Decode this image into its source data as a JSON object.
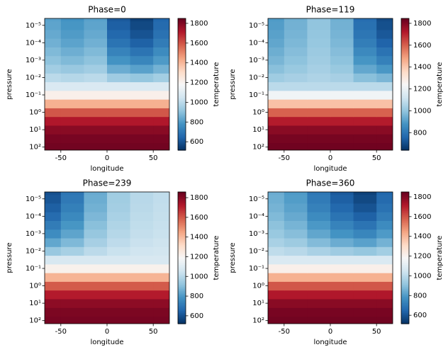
{
  "chart_data": [
    {
      "type": "heatmap",
      "title": "Phase=0",
      "x_label": "longitude",
      "y_label": "pressure",
      "colorbar_label": "temperature",
      "x": [
        -62.5,
        -37.5,
        -12.5,
        12.5,
        37.5,
        62.5
      ],
      "y": [
        100,
        31.6,
        10,
        3.16,
        1,
        0.316,
        0.1,
        0.0316,
        0.01,
        0.00316,
        0.001,
        0.000316,
        0.0001,
        3.16e-05,
        1e-05,
        3.16e-06
      ],
      "z": [
        [
          1830,
          1830,
          1830,
          1830,
          1830,
          1830
        ],
        [
          1820,
          1820,
          1820,
          1820,
          1820,
          1820
        ],
        [
          1790,
          1790,
          1790,
          1790,
          1790,
          1790
        ],
        [
          1720,
          1720,
          1720,
          1720,
          1720,
          1720
        ],
        [
          1600,
          1600,
          1600,
          1600,
          1600,
          1600
        ],
        [
          1420,
          1420,
          1420,
          1420,
          1420,
          1420
        ],
        [
          1220,
          1220,
          1220,
          1220,
          1220,
          1220
        ],
        [
          1080,
          1080,
          1080,
          1080,
          1080,
          1080
        ],
        [
          1002,
          990,
          1002,
          942,
          924,
          951
        ],
        [
          950,
          930,
          950,
          850,
          820,
          865
        ],
        [
          911,
          885,
          911,
          781,
          742,
          800
        ],
        [
          885,
          855,
          885,
          735,
          690,
          758
        ],
        [
          859,
          825,
          859,
          689,
          638,
          715
        ],
        [
          841,
          804,
          841,
          657,
          602,
          684
        ],
        [
          828,
          789,
          828,
          634,
          576,
          663
        ],
        [
          820,
          780,
          820,
          620,
          560,
          650
        ]
      ],
      "xlim": [
        -67.5,
        67.5
      ],
      "ylim": [
        150,
        4e-06
      ],
      "yscale": "log",
      "xticks": [
        -50,
        0,
        50
      ],
      "yticks": [
        {
          "value": 1e-05,
          "label": "10⁻⁵"
        },
        {
          "value": 0.0001,
          "label": "10⁻⁴"
        },
        {
          "value": 0.001,
          "label": "10⁻³"
        },
        {
          "value": 0.01,
          "label": "10⁻²"
        },
        {
          "value": 0.1,
          "label": "10⁻¹"
        },
        {
          "value": 1,
          "label": "10⁰"
        },
        {
          "value": 10,
          "label": "10¹"
        },
        {
          "value": 100,
          "label": "10²"
        }
      ],
      "clim": [
        515,
        1850
      ],
      "cticks": [
        600,
        800,
        1000,
        1200,
        1400,
        1600,
        1800
      ],
      "colormap": [
        "#053061",
        "#2166ac",
        "#4393c3",
        "#92c5de",
        "#d1e5f0",
        "#f7f7f7",
        "#fddbc7",
        "#f4a582",
        "#d6604d",
        "#b2182b",
        "#67001f"
      ]
    },
    {
      "type": "heatmap",
      "title": "Phase=119",
      "x_label": "longitude",
      "y_label": "pressure",
      "colorbar_label": "temperature",
      "x": [
        -62.5,
        -37.5,
        -12.5,
        12.5,
        37.5,
        62.5
      ],
      "y": [
        100,
        31.6,
        10,
        3.16,
        1,
        0.316,
        0.1,
        0.0316,
        0.01,
        0.00316,
        0.001,
        0.000316,
        0.0001,
        3.16e-05,
        1e-05,
        3.16e-06
      ],
      "z": [
        [
          1830,
          1830,
          1830,
          1830,
          1830,
          1830
        ],
        [
          1820,
          1820,
          1820,
          1820,
          1820,
          1820
        ],
        [
          1790,
          1790,
          1790,
          1790,
          1790,
          1790
        ],
        [
          1720,
          1720,
          1720,
          1720,
          1720,
          1720
        ],
        [
          1600,
          1600,
          1600,
          1600,
          1600,
          1600
        ],
        [
          1420,
          1420,
          1420,
          1420,
          1420,
          1420
        ],
        [
          1220,
          1220,
          1220,
          1220,
          1220,
          1220
        ],
        [
          1080,
          1080,
          1080,
          1080,
          1080,
          1080
        ],
        [
          1026,
          1041,
          1056,
          1041,
          990,
          966
        ],
        [
          990,
          1015,
          1040,
          1015,
          930,
          890
        ],
        [
          963,
          996,
          1028,
          996,
          885,
          833
        ],
        [
          945,
          983,
          1020,
          983,
          855,
          795
        ],
        [
          927,
          970,
          1012,
          970,
          825,
          757
        ],
        [
          914,
          960,
          1006,
          960,
          804,
          730
        ],
        [
          905,
          954,
          1002,
          954,
          789,
          711
        ],
        [
          900,
          950,
          1000,
          950,
          780,
          700
        ]
      ],
      "xlim": [
        -67.5,
        67.5
      ],
      "ylim": [
        150,
        4e-06
      ],
      "yscale": "log",
      "xticks": [
        -50,
        0,
        50
      ],
      "yticks": [
        {
          "value": 1e-05,
          "label": "10⁻⁵"
        },
        {
          "value": 0.0001,
          "label": "10⁻⁴"
        },
        {
          "value": 0.001,
          "label": "10⁻³"
        },
        {
          "value": 0.01,
          "label": "10⁻²"
        },
        {
          "value": 0.1,
          "label": "10⁻¹"
        },
        {
          "value": 1,
          "label": "10⁰"
        },
        {
          "value": 10,
          "label": "10¹"
        },
        {
          "value": 100,
          "label": "10²"
        }
      ],
      "clim": [
        640,
        1845
      ],
      "cticks": [
        800,
        1000,
        1200,
        1400,
        1600,
        1800
      ],
      "colormap": [
        "#053061",
        "#2166ac",
        "#4393c3",
        "#92c5de",
        "#d1e5f0",
        "#f7f7f7",
        "#fddbc7",
        "#f4a582",
        "#d6604d",
        "#b2182b",
        "#67001f"
      ]
    },
    {
      "type": "heatmap",
      "title": "Phase=239",
      "x_label": "longitude",
      "y_label": "pressure",
      "colorbar_label": "temperature",
      "x": [
        -62.5,
        -37.5,
        -12.5,
        12.5,
        37.5,
        62.5
      ],
      "y": [
        100,
        31.6,
        10,
        3.16,
        1,
        0.316,
        0.1,
        0.0316,
        0.01,
        0.00316,
        0.001,
        0.000316,
        0.0001,
        3.16e-05,
        1e-05,
        3.16e-06
      ],
      "z": [
        [
          1830,
          1830,
          1830,
          1830,
          1830,
          1830
        ],
        [
          1820,
          1820,
          1820,
          1820,
          1820,
          1820
        ],
        [
          1790,
          1790,
          1790,
          1790,
          1790,
          1790
        ],
        [
          1720,
          1720,
          1720,
          1720,
          1720,
          1720
        ],
        [
          1600,
          1600,
          1600,
          1600,
          1600,
          1600
        ],
        [
          1420,
          1420,
          1420,
          1420,
          1420,
          1420
        ],
        [
          1220,
          1220,
          1220,
          1220,
          1220,
          1220
        ],
        [
          1080,
          1080,
          1080,
          1080,
          1080,
          1080
        ],
        [
          936,
          966,
          1011,
          1041,
          1056,
          1062
        ],
        [
          840,
          890,
          965,
          1015,
          1040,
          1050
        ],
        [
          768,
          833,
          931,
          996,
          1028,
          1041
        ],
        [
          720,
          795,
          908,
          983,
          1020,
          1035
        ],
        [
          672,
          757,
          885,
          970,
          1012,
          1029
        ],
        [
          638,
          730,
          868,
          960,
          1006,
          1025
        ],
        [
          614,
          711,
          857,
          954,
          1002,
          1022
        ],
        [
          600,
          700,
          850,
          950,
          1000,
          1020
        ]
      ],
      "xlim": [
        -67.5,
        67.5
      ],
      "ylim": [
        150,
        4e-06
      ],
      "yscale": "log",
      "xticks": [
        -50,
        0,
        50
      ],
      "yticks": [
        {
          "value": 1e-05,
          "label": "10⁻⁵"
        },
        {
          "value": 0.0001,
          "label": "10⁻⁴"
        },
        {
          "value": 0.001,
          "label": "10⁻³"
        },
        {
          "value": 0.01,
          "label": "10⁻²"
        },
        {
          "value": 0.1,
          "label": "10⁻¹"
        },
        {
          "value": 1,
          "label": "10⁰"
        },
        {
          "value": 10,
          "label": "10¹"
        },
        {
          "value": 100,
          "label": "10²"
        }
      ],
      "clim": [
        520,
        1858
      ],
      "cticks": [
        600,
        800,
        1000,
        1200,
        1400,
        1600,
        1800
      ],
      "colormap": [
        "#053061",
        "#2166ac",
        "#4393c3",
        "#92c5de",
        "#d1e5f0",
        "#f7f7f7",
        "#fddbc7",
        "#f4a582",
        "#d6604d",
        "#b2182b",
        "#67001f"
      ]
    },
    {
      "type": "heatmap",
      "title": "Phase=360",
      "x_label": "longitude",
      "y_label": "pressure",
      "colorbar_label": "temperature",
      "x": [
        -62.5,
        -37.5,
        -12.5,
        12.5,
        37.5,
        62.5
      ],
      "y": [
        100,
        31.6,
        10,
        3.16,
        1,
        0.316,
        0.1,
        0.0316,
        0.01,
        0.00316,
        0.001,
        0.000316,
        0.0001,
        3.16e-05,
        1e-05,
        3.16e-06
      ],
      "z": [
        [
          1830,
          1830,
          1830,
          1830,
          1830,
          1830
        ],
        [
          1820,
          1820,
          1820,
          1820,
          1820,
          1820
        ],
        [
          1790,
          1790,
          1790,
          1790,
          1790,
          1790
        ],
        [
          1720,
          1720,
          1720,
          1720,
          1720,
          1720
        ],
        [
          1600,
          1600,
          1600,
          1600,
          1600,
          1600
        ],
        [
          1420,
          1420,
          1420,
          1420,
          1420,
          1420
        ],
        [
          1220,
          1220,
          1220,
          1220,
          1220,
          1220
        ],
        [
          1080,
          1080,
          1080,
          1080,
          1080,
          1080
        ],
        [
          1011,
          996,
          966,
          942,
          924,
          951
        ],
        [
          965,
          940,
          890,
          850,
          820,
          865
        ],
        [
          931,
          898,
          833,
          781,
          742,
          800
        ],
        [
          908,
          870,
          795,
          735,
          690,
          758
        ],
        [
          885,
          842,
          757,
          689,
          638,
          715
        ],
        [
          868,
          822,
          730,
          657,
          602,
          684
        ],
        [
          857,
          808,
          711,
          634,
          576,
          663
        ],
        [
          850,
          800,
          700,
          620,
          560,
          650
        ]
      ],
      "xlim": [
        -67.5,
        67.5
      ],
      "ylim": [
        150,
        4e-06
      ],
      "yscale": "log",
      "xticks": [
        -50,
        0,
        50
      ],
      "yticks": [
        {
          "value": 1e-05,
          "label": "10⁻⁵"
        },
        {
          "value": 0.0001,
          "label": "10⁻⁴"
        },
        {
          "value": 0.001,
          "label": "10⁻³"
        },
        {
          "value": 0.01,
          "label": "10⁻²"
        },
        {
          "value": 0.1,
          "label": "10⁻¹"
        },
        {
          "value": 1,
          "label": "10⁰"
        },
        {
          "value": 10,
          "label": "10¹"
        },
        {
          "value": 100,
          "label": "10²"
        }
      ],
      "clim": [
        515,
        1850
      ],
      "cticks": [
        600,
        800,
        1000,
        1200,
        1400,
        1600,
        1800
      ],
      "colormap": [
        "#053061",
        "#2166ac",
        "#4393c3",
        "#92c5de",
        "#d1e5f0",
        "#f7f7f7",
        "#fddbc7",
        "#f4a582",
        "#d6604d",
        "#b2182b",
        "#67001f"
      ]
    }
  ]
}
